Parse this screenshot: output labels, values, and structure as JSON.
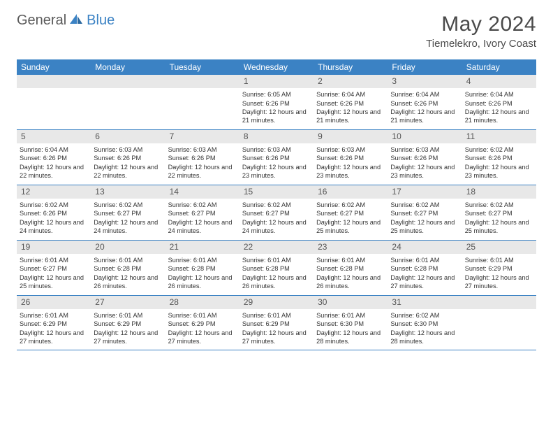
{
  "logo": {
    "part1": "General",
    "part2": "Blue"
  },
  "title": "May 2024",
  "location": "Tiemelekro, Ivory Coast",
  "colors": {
    "accent": "#3b82c4",
    "header_bg": "#3b82c4",
    "header_text": "#ffffff",
    "daynum_bg": "#e8e8e8",
    "daynum_text": "#555555",
    "body_text": "#333333",
    "logo_gray": "#5a5a5a",
    "border": "#3b82c4",
    "background": "#ffffff"
  },
  "typography": {
    "title_fontsize": 30,
    "location_fontsize": 15,
    "header_fontsize": 12,
    "daynum_fontsize": 12,
    "body_fontsize": 9.2,
    "logo_fontsize": 20
  },
  "dayNames": [
    "Sunday",
    "Monday",
    "Tuesday",
    "Wednesday",
    "Thursday",
    "Friday",
    "Saturday"
  ],
  "weeks": [
    [
      {
        "n": "",
        "sr": "",
        "ss": "",
        "dl": ""
      },
      {
        "n": "",
        "sr": "",
        "ss": "",
        "dl": ""
      },
      {
        "n": "",
        "sr": "",
        "ss": "",
        "dl": ""
      },
      {
        "n": "1",
        "sr": "6:05 AM",
        "ss": "6:26 PM",
        "dl": "12 hours and 21 minutes."
      },
      {
        "n": "2",
        "sr": "6:04 AM",
        "ss": "6:26 PM",
        "dl": "12 hours and 21 minutes."
      },
      {
        "n": "3",
        "sr": "6:04 AM",
        "ss": "6:26 PM",
        "dl": "12 hours and 21 minutes."
      },
      {
        "n": "4",
        "sr": "6:04 AM",
        "ss": "6:26 PM",
        "dl": "12 hours and 21 minutes."
      }
    ],
    [
      {
        "n": "5",
        "sr": "6:04 AM",
        "ss": "6:26 PM",
        "dl": "12 hours and 22 minutes."
      },
      {
        "n": "6",
        "sr": "6:03 AM",
        "ss": "6:26 PM",
        "dl": "12 hours and 22 minutes."
      },
      {
        "n": "7",
        "sr": "6:03 AM",
        "ss": "6:26 PM",
        "dl": "12 hours and 22 minutes."
      },
      {
        "n": "8",
        "sr": "6:03 AM",
        "ss": "6:26 PM",
        "dl": "12 hours and 23 minutes."
      },
      {
        "n": "9",
        "sr": "6:03 AM",
        "ss": "6:26 PM",
        "dl": "12 hours and 23 minutes."
      },
      {
        "n": "10",
        "sr": "6:03 AM",
        "ss": "6:26 PM",
        "dl": "12 hours and 23 minutes."
      },
      {
        "n": "11",
        "sr": "6:02 AM",
        "ss": "6:26 PM",
        "dl": "12 hours and 23 minutes."
      }
    ],
    [
      {
        "n": "12",
        "sr": "6:02 AM",
        "ss": "6:26 PM",
        "dl": "12 hours and 24 minutes."
      },
      {
        "n": "13",
        "sr": "6:02 AM",
        "ss": "6:27 PM",
        "dl": "12 hours and 24 minutes."
      },
      {
        "n": "14",
        "sr": "6:02 AM",
        "ss": "6:27 PM",
        "dl": "12 hours and 24 minutes."
      },
      {
        "n": "15",
        "sr": "6:02 AM",
        "ss": "6:27 PM",
        "dl": "12 hours and 24 minutes."
      },
      {
        "n": "16",
        "sr": "6:02 AM",
        "ss": "6:27 PM",
        "dl": "12 hours and 25 minutes."
      },
      {
        "n": "17",
        "sr": "6:02 AM",
        "ss": "6:27 PM",
        "dl": "12 hours and 25 minutes."
      },
      {
        "n": "18",
        "sr": "6:02 AM",
        "ss": "6:27 PM",
        "dl": "12 hours and 25 minutes."
      }
    ],
    [
      {
        "n": "19",
        "sr": "6:01 AM",
        "ss": "6:27 PM",
        "dl": "12 hours and 25 minutes."
      },
      {
        "n": "20",
        "sr": "6:01 AM",
        "ss": "6:28 PM",
        "dl": "12 hours and 26 minutes."
      },
      {
        "n": "21",
        "sr": "6:01 AM",
        "ss": "6:28 PM",
        "dl": "12 hours and 26 minutes."
      },
      {
        "n": "22",
        "sr": "6:01 AM",
        "ss": "6:28 PM",
        "dl": "12 hours and 26 minutes."
      },
      {
        "n": "23",
        "sr": "6:01 AM",
        "ss": "6:28 PM",
        "dl": "12 hours and 26 minutes."
      },
      {
        "n": "24",
        "sr": "6:01 AM",
        "ss": "6:28 PM",
        "dl": "12 hours and 27 minutes."
      },
      {
        "n": "25",
        "sr": "6:01 AM",
        "ss": "6:29 PM",
        "dl": "12 hours and 27 minutes."
      }
    ],
    [
      {
        "n": "26",
        "sr": "6:01 AM",
        "ss": "6:29 PM",
        "dl": "12 hours and 27 minutes."
      },
      {
        "n": "27",
        "sr": "6:01 AM",
        "ss": "6:29 PM",
        "dl": "12 hours and 27 minutes."
      },
      {
        "n": "28",
        "sr": "6:01 AM",
        "ss": "6:29 PM",
        "dl": "12 hours and 27 minutes."
      },
      {
        "n": "29",
        "sr": "6:01 AM",
        "ss": "6:29 PM",
        "dl": "12 hours and 27 minutes."
      },
      {
        "n": "30",
        "sr": "6:01 AM",
        "ss": "6:30 PM",
        "dl": "12 hours and 28 minutes."
      },
      {
        "n": "31",
        "sr": "6:02 AM",
        "ss": "6:30 PM",
        "dl": "12 hours and 28 minutes."
      },
      {
        "n": "",
        "sr": "",
        "ss": "",
        "dl": ""
      }
    ]
  ],
  "labels": {
    "sunrise": "Sunrise:",
    "sunset": "Sunset:",
    "daylight": "Daylight:"
  }
}
